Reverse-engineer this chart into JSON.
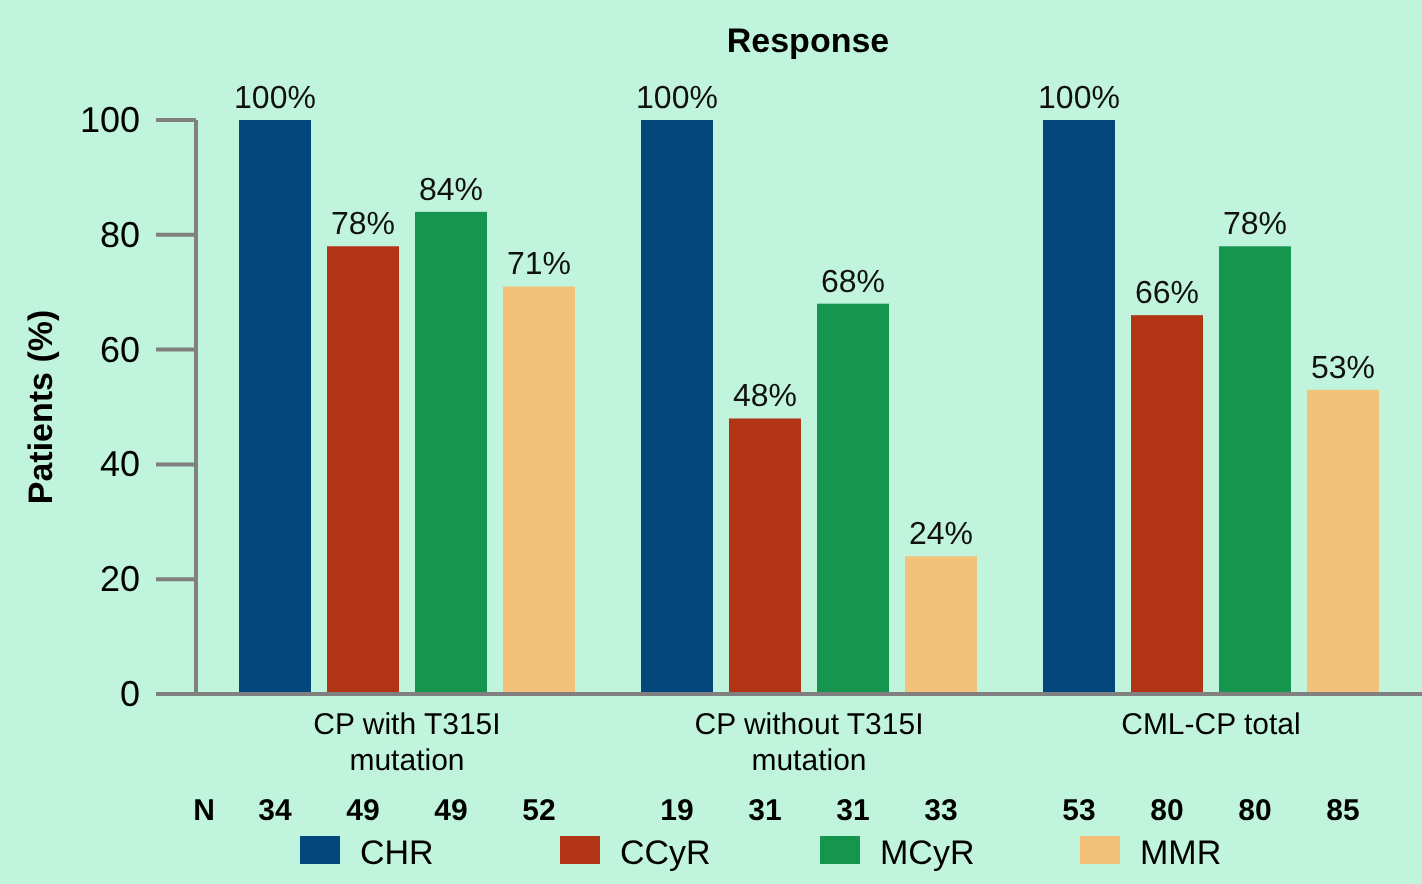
{
  "chart_data": {
    "type": "bar",
    "title": "Response",
    "ylabel": "Patients (%)",
    "categories": [
      "CP with T315I mutation",
      "CP without T315I mutation",
      "CML-CP total"
    ],
    "series": [
      {
        "name": "CHR",
        "color": "#03477d",
        "values": [
          100,
          100,
          100
        ],
        "value_labels": [
          "100%",
          "100%",
          "100%"
        ]
      },
      {
        "name": "CCyR",
        "color": "#b03415",
        "values": [
          78,
          48,
          66
        ],
        "value_labels": [
          "78%",
          "48%",
          "66%"
        ]
      },
      {
        "name": "MCyR",
        "color": "#16954f",
        "values": [
          84,
          68,
          78
        ],
        "value_labels": [
          "84%",
          "68%",
          "78%"
        ]
      },
      {
        "name": "MMR",
        "color": "#f2c27a",
        "values": [
          71,
          24,
          53
        ],
        "value_labels": [
          "71%",
          "24%",
          "53%"
        ]
      }
    ],
    "ylim": [
      0,
      100
    ],
    "yticks": [
      0,
      20,
      40,
      60,
      80,
      100
    ],
    "grid": false,
    "legend": "bottom",
    "annotations": [
      "N",
      "34",
      "49",
      "49",
      "52",
      "19",
      "31",
      "31",
      "33",
      "53",
      "80",
      "80",
      "85"
    ]
  }
}
